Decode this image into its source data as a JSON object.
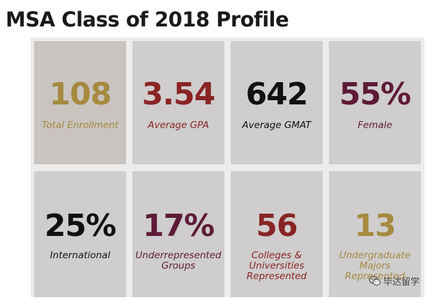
{
  "title": "MSA Class of 2018 Profile",
  "tiles": [
    {
      "value": "108",
      "label": "Total Enrollment"
    },
    {
      "value": "3.54",
      "label": "Average GPA"
    },
    {
      "value": "642",
      "label": "Average GMAT"
    },
    {
      "value": "55%",
      "label": "Female"
    },
    {
      "value": "25%",
      "label": "International"
    },
    {
      "value": "17%",
      "label": "Underrepresented Groups"
    },
    {
      "value": "56",
      "label": "Colleges & Universities Represented"
    },
    {
      "value": "13",
      "label": "Undergraduate Majors Represented"
    }
  ],
  "colors": {
    "gold": "#a58a3f",
    "maroon": "#8a2424",
    "plum": "#5e1a37",
    "black": "#111111"
  },
  "watermark": {
    "text": "毕达留学",
    "icon": "wechat-icon"
  }
}
